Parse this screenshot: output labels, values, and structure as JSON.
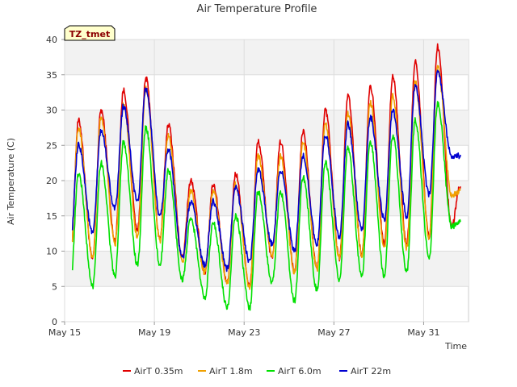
{
  "chart_data": {
    "type": "line",
    "title": "Air Temperature Profile",
    "xlabel": "Time",
    "ylabel": "Air Temperature (C)",
    "site_label": "TZ_tmet",
    "ylim": [
      0,
      40
    ],
    "yticks": [
      0,
      5,
      10,
      15,
      20,
      25,
      30,
      35,
      40
    ],
    "xlim": [
      "2023-05-15",
      "2023-06-02"
    ],
    "xticks": [
      {
        "date": "2023-05-15",
        "label": "May 15"
      },
      {
        "date": "2023-05-19",
        "label": "May 19"
      },
      {
        "date": "2023-05-23",
        "label": "May 23"
      },
      {
        "date": "2023-05-27",
        "label": "May 27"
      },
      {
        "date": "2023-05-31",
        "label": "May 31"
      }
    ],
    "grid": true,
    "legend_position": "bottom",
    "day_dates": [
      "2023-05-15",
      "2023-05-16",
      "2023-05-17",
      "2023-05-18",
      "2023-05-19",
      "2023-05-20",
      "2023-05-21",
      "2023-05-22",
      "2023-05-23",
      "2023-05-24",
      "2023-05-25",
      "2023-05-26",
      "2023-05-27",
      "2023-05-28",
      "2023-05-29",
      "2023-05-30",
      "2023-05-31",
      "2023-06-01"
    ],
    "series": [
      {
        "name": "AirT 0.35m",
        "color": "#e00000",
        "daily_min": [
          8.5,
          8.8,
          11.5,
          13.0,
          11.8,
          9.0,
          7.0,
          5.5,
          5.0,
          9.0,
          7.0,
          7.5,
          9.0,
          9.5,
          11.0,
          11.0,
          12.0,
          13.5
        ],
        "daily_max": [
          28.5,
          30.0,
          32.8,
          34.5,
          28.0,
          20.0,
          19.5,
          21.0,
          25.5,
          25.5,
          27.0,
          30.0,
          32.0,
          33.5,
          34.8,
          36.8,
          39.0,
          19.0
        ]
      },
      {
        "name": "AirT 1.8m",
        "color": "#f0a000",
        "daily_min": [
          8.5,
          9.0,
          11.0,
          12.0,
          11.5,
          8.5,
          7.0,
          5.5,
          5.0,
          9.5,
          7.0,
          7.5,
          9.0,
          9.5,
          10.5,
          10.5,
          12.0,
          18.0
        ],
        "daily_max": [
          27.5,
          29.0,
          31.0,
          33.0,
          26.5,
          18.5,
          18.5,
          19.5,
          23.5,
          23.5,
          25.5,
          28.0,
          29.5,
          31.0,
          32.0,
          34.0,
          36.0,
          18.5
        ]
      },
      {
        "name": "AirT 6.0m",
        "color": "#00e000",
        "daily_min": [
          5.0,
          5.0,
          6.5,
          8.0,
          8.0,
          6.0,
          3.5,
          2.0,
          2.0,
          5.5,
          3.0,
          4.5,
          6.0,
          6.5,
          6.5,
          7.0,
          9.0,
          13.5
        ],
        "daily_max": [
          21.0,
          22.5,
          25.5,
          27.5,
          21.5,
          14.5,
          14.0,
          15.0,
          18.5,
          18.5,
          20.5,
          22.5,
          24.5,
          25.5,
          26.5,
          28.5,
          31.0,
          14.0
        ]
      },
      {
        "name": "AirT 22m",
        "color": "#0000d0",
        "daily_min": [
          11.0,
          12.5,
          16.0,
          17.0,
          15.0,
          9.0,
          8.0,
          7.5,
          8.5,
          11.0,
          10.0,
          11.0,
          12.0,
          13.0,
          14.5,
          15.0,
          18.0,
          23.5
        ],
        "daily_max": [
          25.0,
          27.0,
          30.5,
          33.0,
          24.5,
          17.0,
          17.0,
          19.0,
          21.5,
          21.5,
          23.5,
          26.5,
          28.0,
          29.0,
          30.0,
          33.5,
          35.5,
          23.5
        ]
      }
    ]
  }
}
